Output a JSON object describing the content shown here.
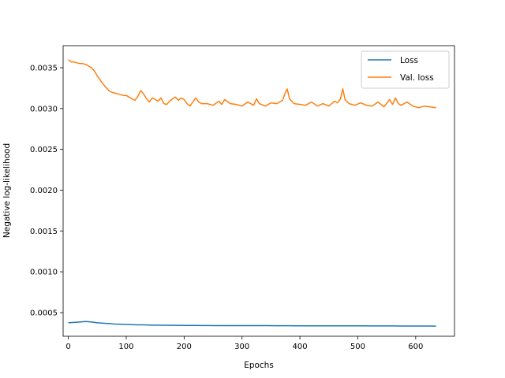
{
  "chart_data": {
    "type": "line",
    "title": "",
    "xlabel": "Epochs",
    "ylabel": "Negative log-likelihood",
    "xlim": [
      -9,
      667
    ],
    "ylim": [
      0.00021,
      0.00377
    ],
    "xticks": [
      0,
      100,
      200,
      300,
      400,
      500,
      600
    ],
    "xtick_labels": [
      "0",
      "100",
      "200",
      "300",
      "400",
      "500",
      "600"
    ],
    "yticks": [
      0.0005,
      0.001,
      0.0015,
      0.002,
      0.0025,
      0.003,
      0.0035
    ],
    "ytick_labels": [
      "0.0005",
      "0.0010",
      "0.0015",
      "0.0020",
      "0.0025",
      "0.0030",
      "0.0035"
    ],
    "grid": false,
    "legend_position": "top-right",
    "series": [
      {
        "name": "Loss",
        "color": "#1f77b4",
        "x": [
          0,
          10,
          20,
          30,
          40,
          50,
          60,
          70,
          80,
          90,
          100,
          110,
          120,
          130,
          140,
          150,
          160,
          170,
          180,
          190,
          200,
          220,
          240,
          260,
          280,
          300,
          320,
          340,
          360,
          380,
          400,
          420,
          440,
          460,
          480,
          500,
          520,
          540,
          560,
          580,
          600,
          620,
          635
        ],
        "values": [
          0.000375,
          0.00038,
          0.000385,
          0.00039,
          0.000385,
          0.000375,
          0.00037,
          0.000365,
          0.00036,
          0.000358,
          0.000355,
          0.000352,
          0.00035,
          0.00035,
          0.000348,
          0.000346,
          0.000345,
          0.000345,
          0.000344,
          0.000344,
          0.000343,
          0.000342,
          0.000341,
          0.00034,
          0.00034,
          0.00034,
          0.00034,
          0.00034,
          0.000339,
          0.000339,
          0.000338,
          0.000338,
          0.000338,
          0.000337,
          0.000337,
          0.000337,
          0.000336,
          0.000336,
          0.000336,
          0.000335,
          0.000335,
          0.000335,
          0.000334
        ]
      },
      {
        "name": "Val. loss",
        "color": "#ff7f0e",
        "x": [
          0,
          5,
          10,
          15,
          20,
          25,
          30,
          35,
          40,
          45,
          50,
          55,
          60,
          65,
          70,
          75,
          80,
          85,
          90,
          95,
          100,
          105,
          110,
          115,
          120,
          125,
          130,
          135,
          140,
          145,
          150,
          155,
          160,
          165,
          170,
          175,
          180,
          185,
          190,
          195,
          200,
          205,
          210,
          215,
          220,
          225,
          230,
          240,
          250,
          260,
          265,
          270,
          280,
          290,
          300,
          310,
          320,
          325,
          330,
          340,
          350,
          360,
          370,
          375,
          378,
          382,
          390,
          400,
          410,
          420,
          430,
          440,
          450,
          460,
          465,
          470,
          474,
          478,
          485,
          495,
          505,
          515,
          525,
          535,
          545,
          555,
          560,
          565,
          570,
          575,
          585,
          595,
          605,
          615,
          625,
          635
        ],
        "values": [
          0.0036,
          0.00357,
          0.00357,
          0.00356,
          0.00355,
          0.00355,
          0.00354,
          0.00352,
          0.0035,
          0.00346,
          0.0034,
          0.00335,
          0.0033,
          0.00326,
          0.00322,
          0.0032,
          0.00319,
          0.00318,
          0.00317,
          0.00316,
          0.00316,
          0.00314,
          0.00312,
          0.0031,
          0.00315,
          0.00322,
          0.00318,
          0.00312,
          0.00308,
          0.00313,
          0.00311,
          0.00309,
          0.00313,
          0.00306,
          0.00305,
          0.00309,
          0.00312,
          0.00314,
          0.0031,
          0.00313,
          0.00311,
          0.00306,
          0.00303,
          0.00308,
          0.00313,
          0.00308,
          0.00306,
          0.00306,
          0.00304,
          0.00309,
          0.00305,
          0.00311,
          0.00306,
          0.00305,
          0.00303,
          0.00308,
          0.00304,
          0.00312,
          0.00306,
          0.00303,
          0.00307,
          0.00306,
          0.0031,
          0.0032,
          0.00324,
          0.00312,
          0.00306,
          0.00305,
          0.00304,
          0.00308,
          0.00303,
          0.00306,
          0.00303,
          0.00309,
          0.00307,
          0.00312,
          0.00324,
          0.00311,
          0.00306,
          0.00304,
          0.00307,
          0.00304,
          0.00303,
          0.00308,
          0.00302,
          0.00311,
          0.00305,
          0.00313,
          0.00306,
          0.00304,
          0.00308,
          0.00303,
          0.00301,
          0.00303,
          0.00302,
          0.00301
        ]
      }
    ]
  }
}
